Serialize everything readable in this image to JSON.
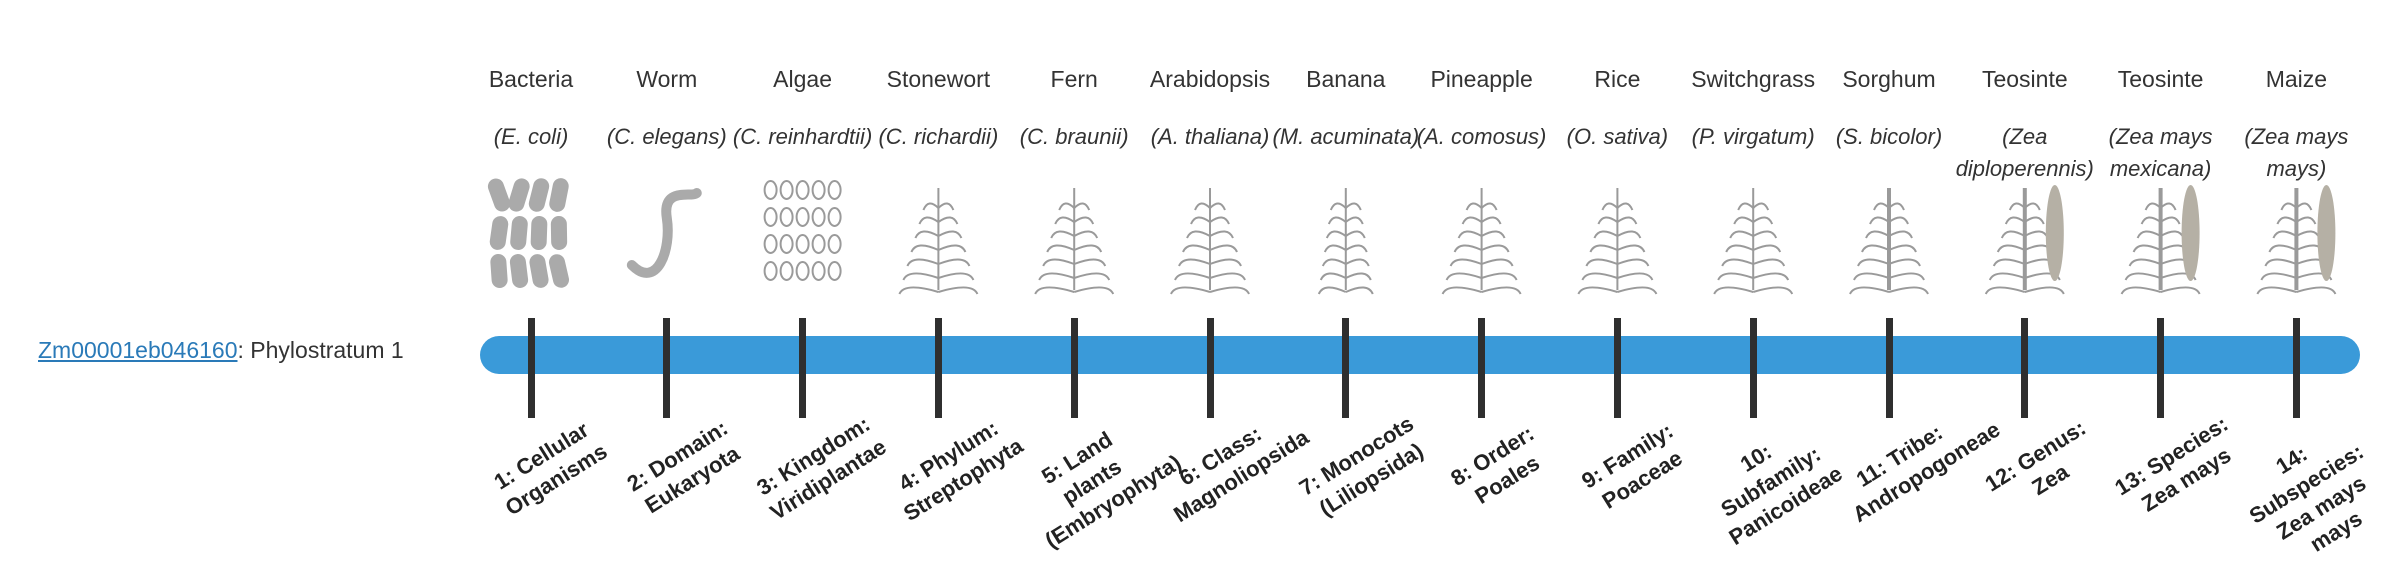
{
  "gene": {
    "id": "Zm00001eb046160",
    "phylostratum": ": Phylostratum 1"
  },
  "strata": [
    {
      "common": "Bacteria",
      "scientific": "(E. coli)",
      "label": "1: Cellular Organisms"
    },
    {
      "common": "Worm",
      "scientific": "(C. elegans)",
      "label": "2: Domain: Eukaryota"
    },
    {
      "common": "Algae",
      "scientific": "(C. reinhardtii)",
      "label": "3: Kingdom: Viridiplantae"
    },
    {
      "common": "Stonewort",
      "scientific": "(C. richardii)",
      "label": "4: Phylum: Streptophyta"
    },
    {
      "common": "Fern",
      "scientific": "(C. braunii)",
      "label": "5: Land plants (Embryophyta)"
    },
    {
      "common": "Arabidopsis",
      "scientific": "(A. thaliana)",
      "label": "6: Class: Magnoliopsida"
    },
    {
      "common": "Banana",
      "scientific": "(M. acuminata)",
      "label": "7: Monocots (Liliopsida)"
    },
    {
      "common": "Pineapple",
      "scientific": "(A. comosus)",
      "label": "8: Order: Poales"
    },
    {
      "common": "Rice",
      "scientific": "(O. sativa)",
      "label": "9: Family: Poaceae"
    },
    {
      "common": "Switchgrass",
      "scientific": "(P. virgatum)",
      "label": "10: Subfamily: Panicoideae"
    },
    {
      "common": "Sorghum",
      "scientific": "(S. bicolor)",
      "label": "11: Tribe: Andropogoneae"
    },
    {
      "common": "Teosinte",
      "scientific": "(Zea diploperennis)",
      "label": "12: Genus: Zea"
    },
    {
      "common": "Teosinte",
      "scientific": "(Zea mays mexicana)",
      "label": "13: Species: Zea mays"
    },
    {
      "common": "Maize",
      "scientific": "(Zea mays mays)",
      "label": "14: Subspecies: Zea mays mays"
    }
  ]
}
